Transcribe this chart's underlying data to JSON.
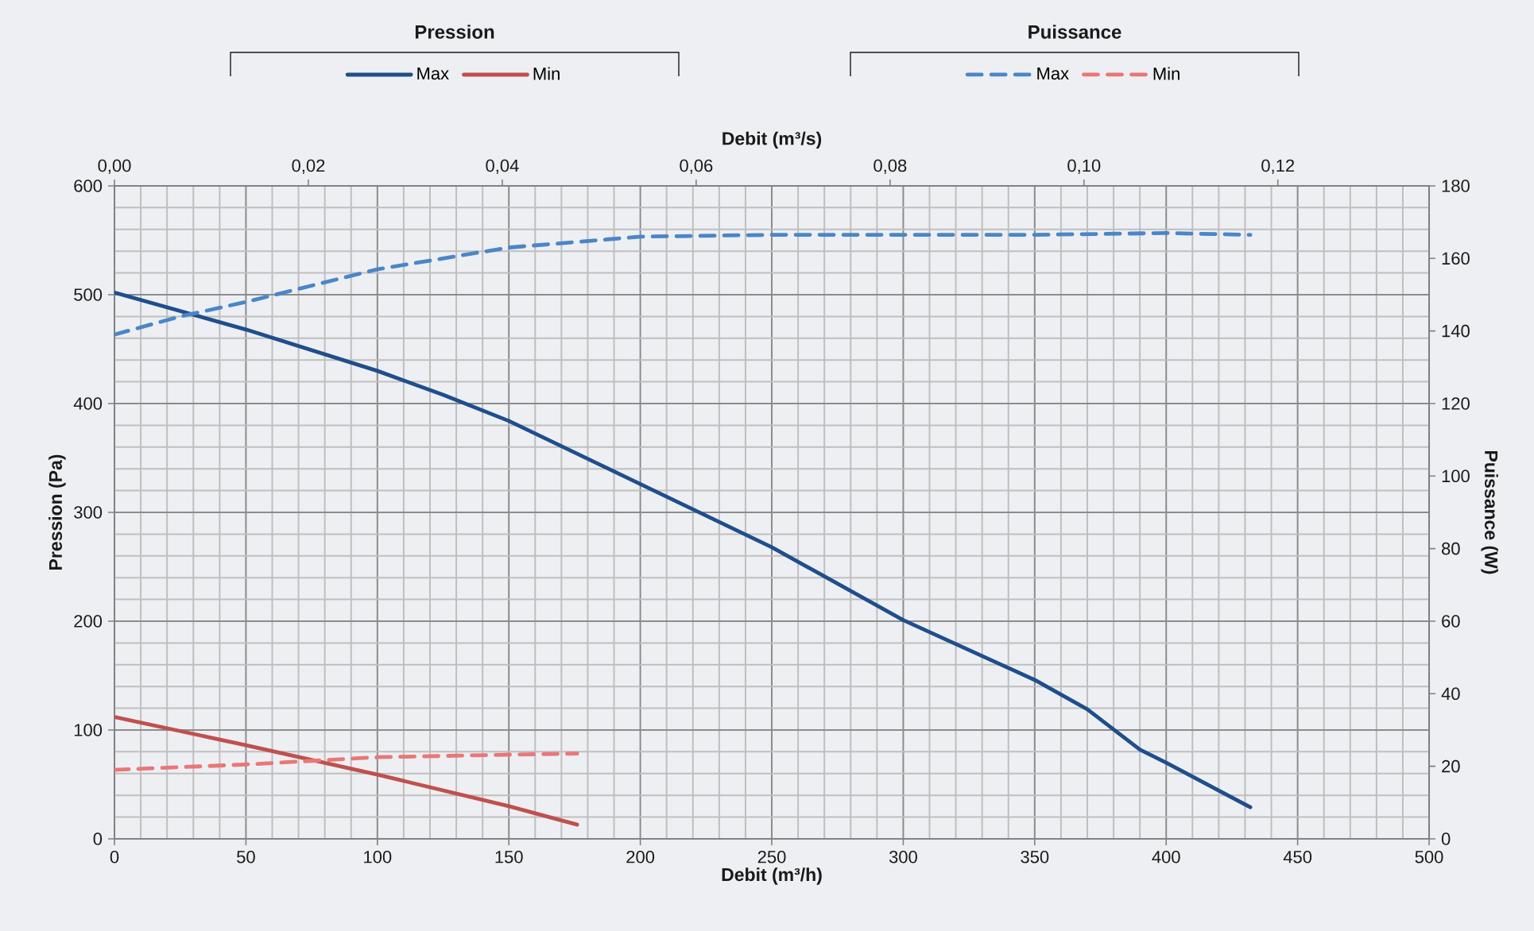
{
  "chart_data": {
    "type": "line",
    "xlabel": "Debit (m³/h)",
    "x2label": "Debit (m³/s)",
    "ylabel": "Pression (Pa)",
    "y2label": "Puissance (W)",
    "xlim": [
      0,
      500
    ],
    "xticks": [
      0,
      50,
      100,
      150,
      200,
      250,
      300,
      350,
      400,
      450,
      500
    ],
    "x2lim": [
      0,
      0.1356
    ],
    "x2ticks": [
      {
        "value": 0,
        "label": "0,00"
      },
      {
        "value": 0.02,
        "label": "0,02"
      },
      {
        "value": 0.04,
        "label": "0,04"
      },
      {
        "value": 0.06,
        "label": "0,06"
      },
      {
        "value": 0.08,
        "label": "0,08"
      },
      {
        "value": 0.1,
        "label": "0,10"
      },
      {
        "value": 0.12,
        "label": "0,12"
      }
    ],
    "ylim": [
      0,
      600
    ],
    "yticks": [
      0,
      100,
      200,
      300,
      400,
      500,
      600
    ],
    "y2lim": [
      0,
      180
    ],
    "y2ticks": [
      0,
      20,
      40,
      60,
      80,
      100,
      120,
      140,
      160,
      180
    ],
    "grid": true,
    "legend": "top",
    "annotations": [
      "Pression",
      "Puissance"
    ],
    "series": [
      {
        "name": "Max",
        "color": "#1f4e8c",
        "line_style": "solid",
        "x": [
          0,
          50,
          100,
          125,
          150,
          200,
          250,
          300,
          350,
          370,
          390,
          400,
          432
        ],
        "values": [
          502,
          468,
          430,
          408,
          384,
          326,
          268,
          201,
          146,
          119,
          82,
          70,
          29
        ]
      },
      {
        "name": "Min",
        "color": "#c0504d",
        "line_style": "solid",
        "x": [
          0,
          50,
          100,
          150,
          176
        ],
        "values": [
          112,
          86,
          59,
          30,
          13
        ]
      },
      {
        "name": "Max",
        "color": "#4a86c8",
        "line_style": "dashed",
        "axis": "y2",
        "x": [
          0,
          25,
          50,
          100,
          150,
          200,
          250,
          300,
          350,
          400,
          432
        ],
        "values": [
          139,
          144,
          148,
          157,
          163,
          166,
          166.5,
          166.5,
          166.5,
          167,
          166.5
        ]
      },
      {
        "name": "Min",
        "color": "#e97777",
        "line_style": "dashed",
        "axis": "y2",
        "x": [
          0,
          50,
          100,
          150,
          176
        ],
        "values": [
          19,
          20.5,
          22.5,
          23.2,
          23.5
        ]
      }
    ]
  }
}
